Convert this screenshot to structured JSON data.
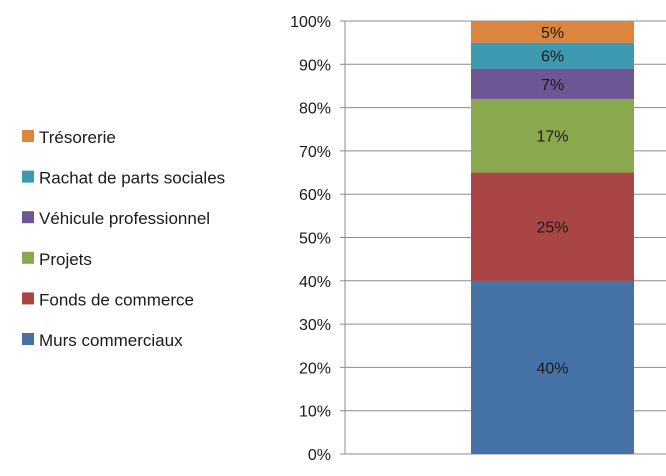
{
  "chart_data": {
    "type": "bar",
    "stacked": true,
    "categories": [
      ""
    ],
    "series": [
      {
        "name": "Murs commerciaux",
        "values": [
          40
        ],
        "label": "40%",
        "color": "#4673A7"
      },
      {
        "name": "Fonds de commerce",
        "values": [
          25
        ],
        "label": "25%",
        "color": "#A94544"
      },
      {
        "name": "Projets",
        "values": [
          17
        ],
        "label": "17%",
        "color": "#8AA84D"
      },
      {
        "name": "Véhicule professionnel",
        "values": [
          7
        ],
        "label": "7%",
        "color": "#6E5594"
      },
      {
        "name": "Rachat de parts sociales",
        "values": [
          6
        ],
        "label": "6%",
        "color": "#3C99B0"
      },
      {
        "name": "Trésorerie",
        "values": [
          5
        ],
        "label": "5%",
        "color": "#DD843D"
      }
    ],
    "y_ticks": [
      "0%",
      "10%",
      "20%",
      "30%",
      "40%",
      "50%",
      "60%",
      "70%",
      "80%",
      "90%",
      "100%"
    ],
    "ylim": [
      0,
      100
    ],
    "grid": true,
    "legend_position": "left",
    "title": "",
    "xlabel": "",
    "ylabel": ""
  }
}
